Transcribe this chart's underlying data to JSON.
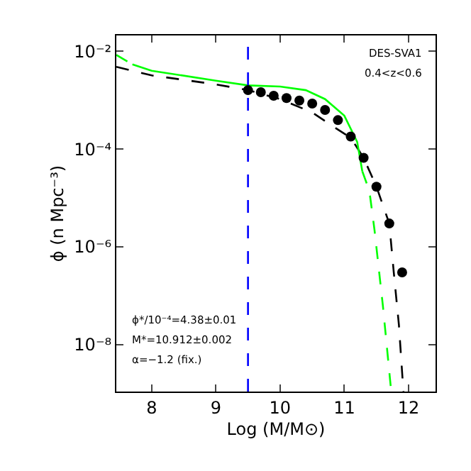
{
  "chart_data": {
    "type": "line",
    "xlabel": "Log (M/M⊙)",
    "ylabel": "ϕ (n Mpc⁻³)",
    "log": "y",
    "grid": false,
    "xlim": [
      7.45,
      12.42
    ],
    "xticks": [
      8,
      9,
      10,
      11,
      12
    ],
    "ylim": [
      1.1e-09,
      0.021
    ],
    "yticks": [
      {
        "value": 0.01,
        "label": "10⁻²"
      },
      {
        "value": 0.0001,
        "label": "10⁻⁴"
      },
      {
        "value": 1e-06,
        "label": "10⁻⁶"
      },
      {
        "value": 1e-08,
        "label": "10⁻⁸"
      }
    ],
    "series": [
      {
        "color": "#000000",
        "line_style": "dashed",
        "marker": "none",
        "x": [
          7.45,
          8,
          8.5,
          9,
          9.5,
          10,
          10.5,
          10.9,
          11.1,
          11.3,
          11.5,
          11.7,
          11.77,
          11.85,
          11.92
        ],
        "values": [
          0.0048,
          0.0032,
          0.0026,
          0.0021,
          0.0016,
          0.00105,
          0.00056,
          0.00025,
          0.00017,
          6.6e-05,
          1.7e-05,
          3e-06,
          3e-07,
          2.5e-08,
          1.1e-09
        ]
      },
      {
        "type": "line",
        "color": "#00ff00",
        "line_style": "dashed",
        "marker": "none",
        "x": [
          7.45,
          7.7
        ],
        "values": [
          0.0084,
          0.0054
        ]
      },
      {
        "color": "#00ff00",
        "line_style": "solid",
        "marker": "none",
        "x": [
          7.7,
          8,
          9,
          9.5,
          10,
          10.4,
          10.7,
          11,
          11.2,
          11.28
        ],
        "values": [
          0.0054,
          0.004,
          0.0025,
          0.002,
          0.0019,
          0.0016,
          0.00105,
          0.00048,
          0.00014,
          3.5e-05
        ]
      },
      {
        "type": "line",
        "color": "#00ff00",
        "line_style": "dashed",
        "marker": "none",
        "x": [
          11.28,
          11.39,
          11.47,
          11.6,
          11.73
        ],
        "values": [
          3.5e-05,
          1.4e-05,
          2.2e-06,
          6.3e-08,
          1.1e-09
        ]
      },
      {
        "type": "scatter",
        "color": "#000000",
        "marker": "circle",
        "x": [
          9.5,
          9.7,
          9.9,
          10.1,
          10.3,
          10.5,
          10.7,
          10.9,
          11.1,
          11.3,
          11.5,
          11.7,
          11.9
        ],
        "values": [
          0.0016,
          0.00145,
          0.00123,
          0.0011,
          0.00098,
          0.00085,
          0.00063,
          0.00039,
          0.00018,
          6.6e-05,
          1.7e-05,
          3e-06,
          3e-07
        ]
      }
    ],
    "ref_lines": [
      {
        "axis": "x",
        "value": 9.5,
        "color": "#0000ff",
        "line_style": "dashed"
      }
    ],
    "annotations": [
      "DES-SVA1",
      "0.4<z<0.6",
      "ϕ*/10⁻⁴=4.38±0.01",
      "M*=10.912±0.002",
      "α=−1.2 (fix.)"
    ]
  }
}
